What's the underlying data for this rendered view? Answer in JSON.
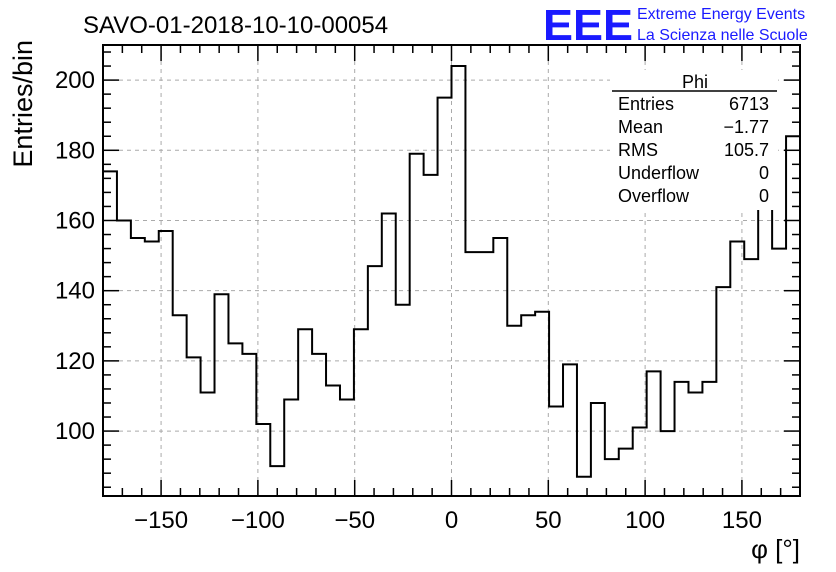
{
  "chart_data": {
    "type": "histogram",
    "title": "SAVO-01-2018-10-10-00054",
    "xlabel": "φ [°]",
    "ylabel": "Entries/bin",
    "xlim": [
      -180,
      180
    ],
    "ylim": [
      81.5,
      210
    ],
    "bin_width": 7.2,
    "xticks": [
      -150,
      -100,
      -50,
      0,
      50,
      100,
      150
    ],
    "xtick_labels": [
      "−150",
      "−100",
      "−50",
      "0",
      "50",
      "100",
      "150"
    ],
    "yticks": [
      100,
      120,
      140,
      160,
      180,
      200
    ],
    "grid": true,
    "values": [
      174,
      160,
      155,
      154,
      157,
      133,
      121,
      111,
      139,
      125,
      122,
      102,
      90,
      109,
      129,
      122,
      113,
      109,
      129,
      147,
      162,
      136,
      179,
      173,
      195,
      204,
      151,
      151,
      155,
      130,
      133,
      134,
      107,
      119,
      87,
      108,
      92,
      95,
      101,
      117,
      100,
      114,
      111,
      114,
      141,
      154,
      149,
      164,
      152,
      184
    ]
  },
  "stats_box": {
    "title": "Phi",
    "rows": [
      {
        "label": "Entries",
        "value": "6713"
      },
      {
        "label": "Mean",
        "value": "−1.77"
      },
      {
        "label": "RMS",
        "value": "105.7"
      },
      {
        "label": "Underflow",
        "value": "0"
      },
      {
        "label": "Overflow",
        "value": "0"
      }
    ]
  },
  "logo": {
    "mark": "EEE",
    "line1": "Extreme Energy Events",
    "line2": "La Scienza nelle Scuole",
    "color": "#1a1aff"
  }
}
